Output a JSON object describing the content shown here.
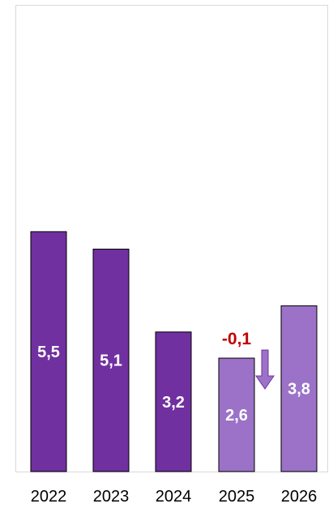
{
  "chart_data": {
    "type": "bar",
    "categories": [
      "2022",
      "2023",
      "2024",
      "2025",
      "2026"
    ],
    "values": [
      5.5,
      5.1,
      3.2,
      2.6,
      3.8
    ],
    "value_labels": [
      "5,5",
      "5,1",
      "3,2",
      "2,6",
      "3,8"
    ],
    "bar_colors": [
      "#7030A0",
      "#7030A0",
      "#7030A0",
      "#9B72C8",
      "#9B72C8"
    ],
    "bar_outline": "#000000",
    "annotation": {
      "text": "-0,1",
      "category": "2025",
      "color": "#C00000",
      "arrow": "down-arrow-icon",
      "arrow_color": "#9B72C8"
    },
    "title": "",
    "xlabel": "",
    "ylabel": "",
    "ylim": [
      0,
      10.7
    ],
    "grid": false,
    "legend": "none"
  }
}
